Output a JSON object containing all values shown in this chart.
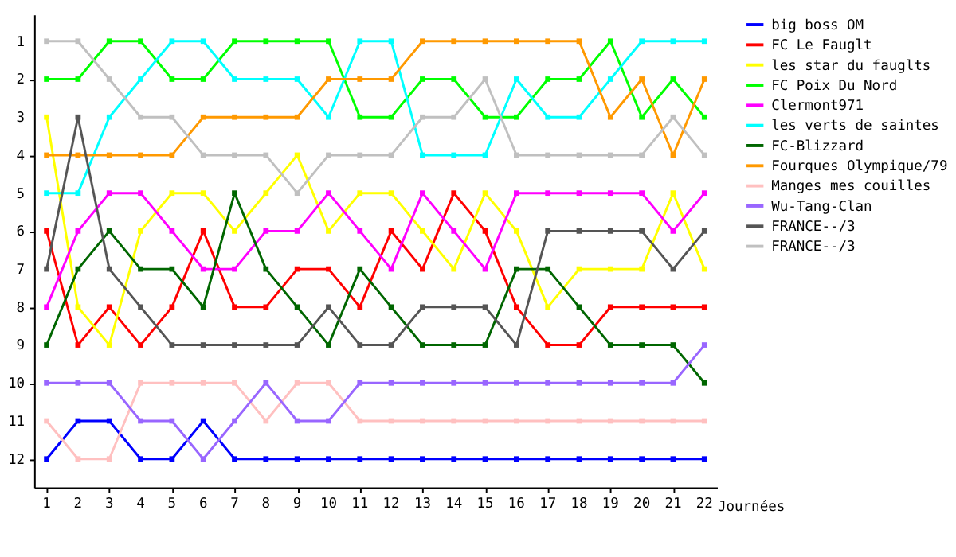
{
  "chart_data": {
    "type": "line",
    "xlabel": "Journées",
    "x": [
      1,
      2,
      3,
      4,
      5,
      6,
      7,
      8,
      9,
      10,
      11,
      12,
      13,
      14,
      15,
      16,
      17,
      18,
      19,
      20,
      21,
      22
    ],
    "xlim": [
      0.6,
      22.4
    ],
    "xticks": [
      1,
      2,
      3,
      4,
      5,
      6,
      7,
      8,
      9,
      10,
      11,
      12,
      13,
      14,
      15,
      16,
      17,
      18,
      19,
      20,
      21,
      22
    ],
    "ylim": [
      12.75,
      0.3
    ],
    "yticks": [
      1,
      2,
      3,
      4,
      5,
      6,
      7,
      8,
      9,
      10,
      11,
      12
    ],
    "grid": false,
    "legend": "right",
    "marker": "square",
    "line_style": "solid",
    "series": [
      {
        "name": "big boss OM",
        "color": "#0000ff",
        "values": [
          12,
          11,
          11,
          12,
          12,
          11,
          12,
          12,
          12,
          12,
          12,
          12,
          12,
          12,
          12,
          12,
          12,
          12,
          12,
          12,
          12,
          12
        ]
      },
      {
        "name": "FC Le Fauglt",
        "color": "#ff0000",
        "values": [
          6,
          9,
          8,
          9,
          8,
          6,
          8,
          8,
          7,
          7,
          8,
          6,
          7,
          5,
          6,
          8,
          9,
          9,
          8,
          8,
          8,
          8
        ]
      },
      {
        "name": "les star du fauglts",
        "color": "#ffff00",
        "values": [
          3,
          8,
          9,
          6,
          5,
          5,
          6,
          5,
          4,
          6,
          5,
          5,
          6,
          7,
          5,
          6,
          8,
          7,
          7,
          7,
          5,
          7
        ]
      },
      {
        "name": "FC Poix Du Nord",
        "color": "#00ff00",
        "values": [
          2,
          2,
          1,
          1,
          2,
          2,
          1,
          1,
          1,
          1,
          3,
          3,
          2,
          2,
          3,
          3,
          2,
          2,
          1,
          3,
          2,
          3
        ]
      },
      {
        "name": "Clermont971",
        "color": "#ff00ff",
        "values": [
          8,
          6,
          5,
          5,
          6,
          7,
          7,
          6,
          6,
          5,
          6,
          7,
          5,
          6,
          7,
          5,
          5,
          5,
          5,
          5,
          6,
          5
        ]
      },
      {
        "name": "les verts de saintes",
        "color": "#00ffff",
        "values": [
          5,
          5,
          3,
          2,
          1,
          1,
          2,
          2,
          2,
          3,
          1,
          1,
          4,
          4,
          4,
          2,
          3,
          3,
          2,
          1,
          1,
          1
        ]
      },
      {
        "name": "FC-Blizzard",
        "color": "#006600",
        "values": [
          9,
          7,
          6,
          7,
          7,
          8,
          5,
          7,
          8,
          9,
          7,
          8,
          9,
          9,
          9,
          7,
          7,
          8,
          9,
          9,
          9,
          10
        ]
      },
      {
        "name": "Fourques Olympique/79",
        "color": "#ff9900",
        "values": [
          4,
          4,
          4,
          4,
          4,
          3,
          3,
          3,
          3,
          2,
          2,
          2,
          1,
          1,
          1,
          1,
          1,
          1,
          3,
          2,
          4,
          2
        ]
      },
      {
        "name": "Manges mes couilles",
        "color": "#ffc0c0",
        "values": [
          11,
          12,
          12,
          10,
          10,
          10,
          10,
          11,
          10,
          10,
          11,
          11,
          11,
          11,
          11,
          11,
          11,
          11,
          11,
          11,
          11,
          11
        ]
      },
      {
        "name": "Wu-Tang-Clan",
        "color": "#9966ff",
        "values": [
          10,
          10,
          10,
          11,
          11,
          12,
          11,
          10,
          11,
          11,
          10,
          10,
          10,
          10,
          10,
          10,
          10,
          10,
          10,
          10,
          10,
          9
        ]
      },
      {
        "name": "FRANCE--/3",
        "color": "#555555",
        "values": [
          7,
          3,
          7,
          8,
          9,
          9,
          9,
          9,
          9,
          8,
          9,
          9,
          8,
          8,
          8,
          9,
          6,
          6,
          6,
          6,
          7,
          6
        ]
      },
      {
        "name": "FRANCE--/3",
        "color": "#c0c0c0",
        "values": [
          1,
          1,
          2,
          3,
          3,
          4,
          4,
          4,
          5,
          4,
          4,
          4,
          3,
          3,
          2,
          4,
          4,
          4,
          4,
          4,
          3,
          4
        ]
      }
    ]
  }
}
